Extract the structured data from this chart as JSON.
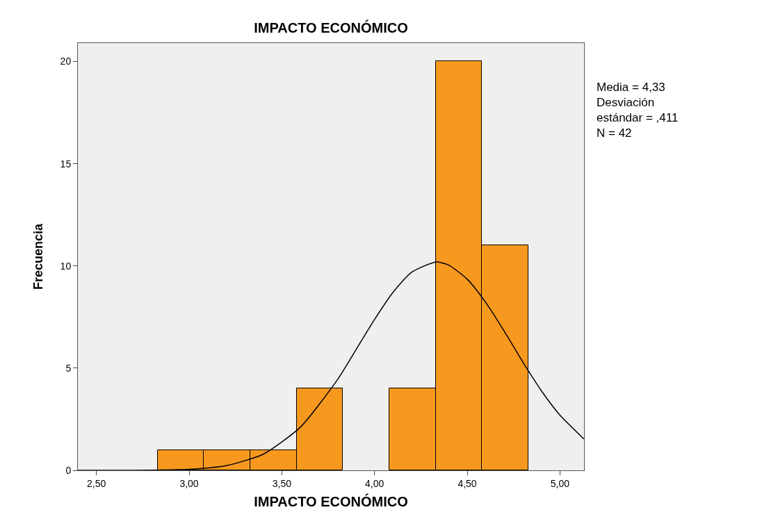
{
  "chart_data": {
    "type": "histogram",
    "title": "IMPACTO ECONÓMICO",
    "xlabel": "IMPACTO ECONÓMICO",
    "ylabel": "Frecuencia",
    "series": [
      {
        "bins": [
          2.83,
          3.08,
          3.33,
          3.58,
          3.83,
          4.08,
          4.33,
          4.58,
          4.83
        ],
        "values": [
          1,
          1,
          1,
          4,
          0,
          4,
          20,
          11
        ],
        "color": "#f7991f"
      },
      {
        "type": "line",
        "x": [
          2.4,
          2.6,
          2.8,
          3.0,
          3.2,
          3.4,
          3.6,
          3.8,
          3.9,
          4.0,
          4.1,
          4.2,
          4.33,
          4.4,
          4.5,
          4.6,
          4.7,
          4.8,
          4.9,
          5.0,
          5.13
        ],
        "values": [
          0.0,
          0.0,
          0.01,
          0.05,
          0.23,
          0.79,
          2.11,
          4.43,
          5.9,
          7.38,
          8.71,
          9.69,
          10.19,
          10.04,
          9.35,
          8.21,
          6.8,
          5.3,
          3.89,
          2.7,
          1.53
        ],
        "color": "#000000"
      }
    ],
    "xlim": [
      2.4,
      5.13
    ],
    "ylim": [
      0,
      20.9
    ],
    "xticks": [
      {
        "value": 2.5,
        "label": "2,50"
      },
      {
        "value": 3.0,
        "label": "3,00"
      },
      {
        "value": 3.5,
        "label": "3,50"
      },
      {
        "value": 4.0,
        "label": "4,00"
      },
      {
        "value": 4.5,
        "label": "4,50"
      },
      {
        "value": 5.0,
        "label": "5,00"
      }
    ],
    "yticks": [
      0,
      5,
      10,
      15,
      20
    ],
    "annotations": [
      "Media = 4,33\nDesviación\nestándar = ,411\nN = 42"
    ],
    "grid": false
  }
}
